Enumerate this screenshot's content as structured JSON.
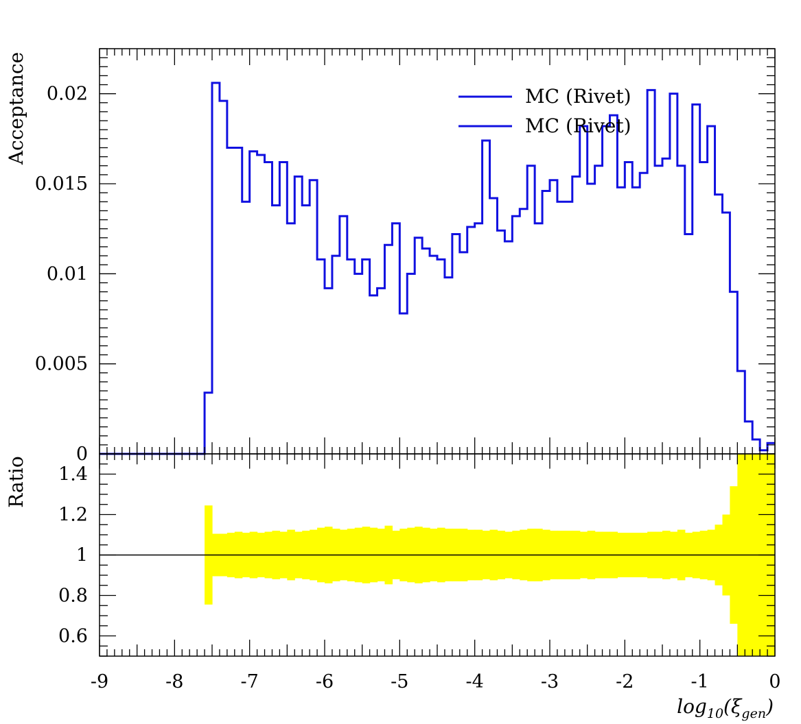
{
  "chart_data": [
    {
      "type": "line",
      "step": true,
      "panel": "main",
      "ylabel": "Acceptance",
      "xlim": [
        -9,
        0
      ],
      "ylim": [
        0,
        0.0225
      ],
      "yticks": [
        {
          "value": 0,
          "label": "0"
        },
        {
          "value": 0.005,
          "label": "0.005"
        },
        {
          "value": 0.01,
          "label": "0.01"
        },
        {
          "value": 0.015,
          "label": "0.015"
        },
        {
          "value": 0.02,
          "label": "0.02"
        }
      ],
      "color": "#1010e0",
      "legend": {
        "placement": "top-right",
        "entries": [
          "MC (Rivet)",
          "MC (Rivet)"
        ]
      },
      "bin_width": 0.1,
      "x_start": -9,
      "values": [
        0,
        0,
        0,
        0,
        0,
        0,
        0,
        0,
        0,
        0,
        0,
        0,
        0,
        0,
        0.0034,
        0.0206,
        0.0196,
        0.017,
        0.017,
        0.014,
        0.0168,
        0.0166,
        0.0162,
        0.0138,
        0.0162,
        0.0128,
        0.0154,
        0.0138,
        0.0152,
        0.0108,
        0.0092,
        0.011,
        0.0132,
        0.0108,
        0.01,
        0.0108,
        0.0088,
        0.0092,
        0.0116,
        0.0128,
        0.0078,
        0.01,
        0.012,
        0.0114,
        0.011,
        0.0108,
        0.0098,
        0.0122,
        0.0112,
        0.0126,
        0.0128,
        0.0174,
        0.0142,
        0.0124,
        0.0118,
        0.0132,
        0.0136,
        0.016,
        0.0128,
        0.0146,
        0.0152,
        0.014,
        0.014,
        0.0154,
        0.0182,
        0.015,
        0.016,
        0.0182,
        0.0188,
        0.0148,
        0.0162,
        0.0148,
        0.0156,
        0.0202,
        0.016,
        0.0164,
        0.02,
        0.016,
        0.0122,
        0.0194,
        0.0162,
        0.0182,
        0.0144,
        0.0134,
        0.009,
        0.0046,
        0.0018,
        0.0008,
        0.0002,
        0.0006
      ]
    },
    {
      "type": "area",
      "panel": "ratio",
      "ylabel": "Ratio",
      "xlabel": "log10(ξgen)",
      "xlim": [
        -9,
        0
      ],
      "ylim": [
        0.5,
        1.5
      ],
      "xticks": [
        {
          "value": -9,
          "label": "-9"
        },
        {
          "value": -8,
          "label": "-8"
        },
        {
          "value": -7,
          "label": "-7"
        },
        {
          "value": -6,
          "label": "-6"
        },
        {
          "value": -5,
          "label": "-5"
        },
        {
          "value": -4,
          "label": "-4"
        },
        {
          "value": -3,
          "label": "-3"
        },
        {
          "value": -2,
          "label": "-2"
        },
        {
          "value": -1,
          "label": "-1"
        },
        {
          "value": 0,
          "label": "0"
        }
      ],
      "yticks": [
        {
          "value": 0.6,
          "label": "0.6"
        },
        {
          "value": 0.8,
          "label": "0.8"
        },
        {
          "value": 1,
          "label": "1"
        },
        {
          "value": 1.2,
          "label": "1.2"
        },
        {
          "value": 1.4,
          "label": "1.4"
        }
      ],
      "reference_line": 1,
      "band_color": "#ffff00",
      "bin_width": 0.1,
      "x_start": -7.6,
      "band_upper": [
        1.245,
        1.105,
        1.105,
        1.11,
        1.115,
        1.11,
        1.115,
        1.11,
        1.115,
        1.12,
        1.115,
        1.125,
        1.115,
        1.12,
        1.125,
        1.135,
        1.14,
        1.13,
        1.125,
        1.13,
        1.135,
        1.14,
        1.135,
        1.13,
        1.145,
        1.12,
        1.13,
        1.135,
        1.14,
        1.135,
        1.13,
        1.135,
        1.13,
        1.13,
        1.13,
        1.125,
        1.125,
        1.12,
        1.125,
        1.12,
        1.115,
        1.12,
        1.125,
        1.13,
        1.13,
        1.125,
        1.12,
        1.12,
        1.12,
        1.12,
        1.115,
        1.12,
        1.115,
        1.115,
        1.115,
        1.11,
        1.11,
        1.11,
        1.11,
        1.115,
        1.115,
        1.12,
        1.115,
        1.125,
        1.11,
        1.115,
        1.12,
        1.125,
        1.15,
        1.2,
        1.34,
        1.5,
        1.5,
        1.5,
        1.5,
        1.5
      ],
      "band_lower": [
        0.755,
        0.895,
        0.895,
        0.89,
        0.885,
        0.89,
        0.885,
        0.89,
        0.885,
        0.88,
        0.885,
        0.875,
        0.885,
        0.88,
        0.875,
        0.865,
        0.86,
        0.87,
        0.875,
        0.87,
        0.865,
        0.86,
        0.865,
        0.87,
        0.855,
        0.88,
        0.87,
        0.865,
        0.86,
        0.865,
        0.87,
        0.865,
        0.87,
        0.87,
        0.87,
        0.875,
        0.875,
        0.88,
        0.875,
        0.88,
        0.885,
        0.88,
        0.875,
        0.87,
        0.87,
        0.875,
        0.88,
        0.88,
        0.88,
        0.88,
        0.885,
        0.88,
        0.885,
        0.885,
        0.885,
        0.89,
        0.89,
        0.89,
        0.89,
        0.885,
        0.885,
        0.88,
        0.885,
        0.875,
        0.89,
        0.885,
        0.88,
        0.875,
        0.85,
        0.8,
        0.66,
        0.5,
        0.5,
        0.5,
        0.5,
        0.5
      ]
    }
  ]
}
